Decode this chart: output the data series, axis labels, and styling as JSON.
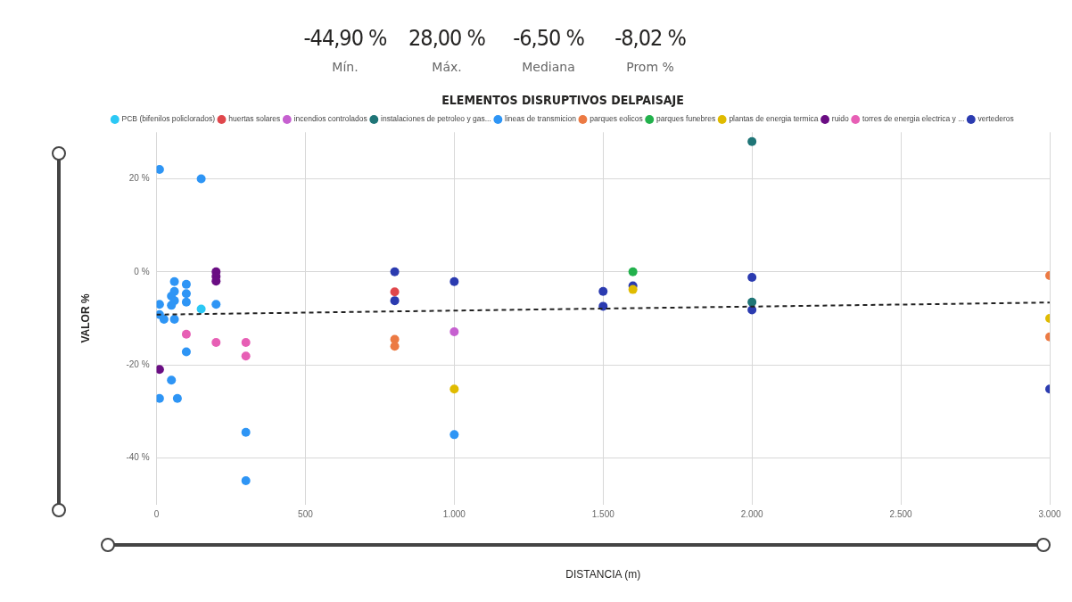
{
  "chart_data": {
    "type": "scatter",
    "title": "ELEMENTOS DISRUPTIVOS DELPAISAJE",
    "xlabel": "DISTANCIA (m)",
    "ylabel": "VALOR %",
    "annotations": [
      "-44,90 %",
      "Mín.",
      "28,00 %",
      "Máx.",
      "-6,50 %",
      "Mediana",
      "-8,02 %",
      "Prom %"
    ],
    "xlim": [
      0,
      3000
    ],
    "xticks": [
      0,
      500,
      {
        "value": 1000,
        "label": "1.000"
      },
      {
        "value": 1500,
        "label": "1.500"
      },
      {
        "value": 2000,
        "label": "2.000"
      },
      {
        "value": 2500,
        "label": "2.500"
      },
      {
        "value": 3000,
        "label": "3.000"
      }
    ],
    "ylim": [
      -50,
      30
    ],
    "yticks": [
      {
        "value": -40,
        "label": "-40 %"
      },
      {
        "value": -20,
        "label": "-20 %"
      },
      {
        "value": 0,
        "label": "0 %"
      },
      {
        "value": 20,
        "label": "20 %"
      }
    ],
    "grid": true,
    "legend": "top",
    "marker": "circle",
    "series": [
      {
        "name": "PCB (bifenilos policlorados)",
        "color": "#2bc8f5",
        "x": [
          150
        ],
        "values": [
          -8
        ]
      },
      {
        "name": "huertas solares",
        "color": "#e0474c",
        "x": [
          800
        ],
        "values": [
          -4.3
        ]
      },
      {
        "name": "incendios controlados",
        "color": "#c660d0",
        "x": [
          1000
        ],
        "values": [
          -12.9
        ]
      },
      {
        "name": "instalaciones de petroleo y gas...",
        "color": "#1f7577",
        "x": [
          2000,
          2000
        ],
        "values": [
          28,
          -6.5
        ]
      },
      {
        "name": "lineas de transmicion",
        "color": "#2e95f5",
        "x": [
          10,
          150,
          60,
          100,
          60,
          100,
          50,
          60,
          100,
          50,
          10,
          10,
          25,
          60,
          200,
          100,
          50,
          10,
          70,
          300,
          300,
          1000
        ],
        "values": [
          22,
          20,
          -2.1,
          -2.7,
          -4.2,
          -4.7,
          -5.2,
          -6.2,
          -6.5,
          -7.2,
          -7,
          -9.2,
          -10.2,
          -10.2,
          -7,
          -17.2,
          -23.3,
          -27.2,
          -27.2,
          -34.5,
          -44.9,
          -35
        ]
      },
      {
        "name": "parques eolicos",
        "color": "#ec7a43",
        "x": [
          800,
          800,
          3000,
          3000
        ],
        "values": [
          -14.5,
          -16,
          -0.8,
          -14
        ]
      },
      {
        "name": "parques funebres",
        "color": "#22b14c",
        "x": [
          1600
        ],
        "values": [
          0
        ]
      },
      {
        "name": "plantas de energia termica",
        "color": "#e0bb00",
        "x": [
          1000,
          1600,
          3000
        ],
        "values": [
          -25.2,
          -3.8,
          -10
        ]
      },
      {
        "name": "ruido",
        "color": "#6a0d83",
        "x": [
          200,
          200,
          200,
          10
        ],
        "values": [
          0,
          -1,
          -2,
          -21
        ]
      },
      {
        "name": "torres de energia electrica y ...",
        "color": "#e75fb5",
        "x": [
          100,
          200,
          300,
          300
        ],
        "values": [
          -13.4,
          -15.2,
          -15.2,
          -18.1
        ]
      },
      {
        "name": "vertederos",
        "color": "#2b3bb0",
        "x": [
          800,
          800,
          1000,
          1500,
          1500,
          1600,
          2000,
          2000,
          3000
        ],
        "values": [
          0,
          -6.2,
          -2.1,
          -4.2,
          -7.4,
          -3,
          -1.2,
          -8.2,
          -25.2
        ]
      },
      {
        "type": "line",
        "color": "#222222",
        "line_style": "dashed",
        "marker": "none",
        "x": [
          0,
          3000
        ],
        "values": [
          -9.2,
          -6.6
        ]
      }
    ]
  }
}
